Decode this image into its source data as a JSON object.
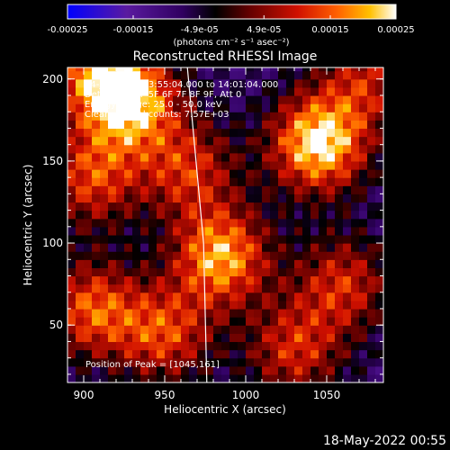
{
  "chart_data": {
    "type": "heatmap",
    "title": "Reconstructed RHESSI Image",
    "xlabel": "Heliocentric X (arcsec)",
    "ylabel": "Heliocentric Y (arcsec)",
    "xlim": [
      890,
      1085
    ],
    "ylim": [
      15,
      207
    ],
    "x_ticks": [
      900,
      950,
      1000,
      1050
    ],
    "y_ticks": [
      50,
      100,
      150,
      200
    ],
    "colorbar": {
      "ticks": [
        "-0.00025",
        "-0.00015",
        "-4.9e-05",
        "4.9e-05",
        "0.00015",
        "0.00025"
      ],
      "range": [
        -0.00025,
        0.00025
      ],
      "units_label": "(photons cm⁻² s⁻¹ asec⁻²)"
    },
    "annotations": {
      "time": "14-Jan-2015 13:55:04.000 to 14:01:04.000",
      "detectors": "Detectors: 3F 5F 6F 7F 8F 9F, Att 0",
      "energy": "Energy Range: 25.0 - 50.0 keV",
      "clean": "Clean     Total counts: 7.57E+03",
      "peak": "Position of Peak = [1045,161]"
    },
    "limb_line": [
      [
        964,
        207
      ],
      [
        974,
        100
      ],
      [
        976,
        15
      ]
    ],
    "sources": [
      {
        "x": 930,
        "y": 185,
        "value": 0.00018
      },
      {
        "x": 910,
        "y": 205,
        "value": 0.00016
      },
      {
        "x": 905,
        "y": 140,
        "value": 0.00012
      },
      {
        "x": 965,
        "y": 145,
        "value": 0.0001
      },
      {
        "x": 1045,
        "y": 161,
        "value": 0.00025
      },
      {
        "x": 985,
        "y": 92,
        "value": 0.0002
      },
      {
        "x": 905,
        "y": 60,
        "value": 0.00014
      },
      {
        "x": 950,
        "y": 45,
        "value": 0.00012
      },
      {
        "x": 1060,
        "y": 75,
        "value": 0.0001
      },
      {
        "x": 1030,
        "y": 35,
        "value": 0.0001
      },
      {
        "x": 1075,
        "y": 200,
        "value": 8e-05
      }
    ]
  },
  "footer": {
    "date": "18-May-2022 00:55"
  }
}
